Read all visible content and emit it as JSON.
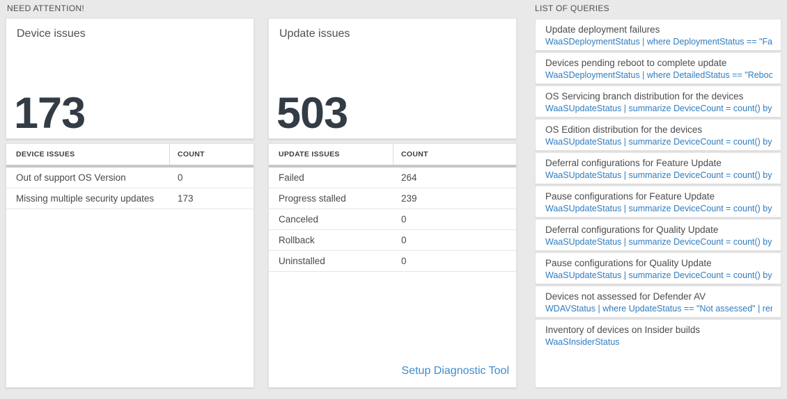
{
  "need_attention": {
    "label": "NEED ATTENTION!",
    "cards": [
      {
        "title": "Device issues",
        "count": "173",
        "table": {
          "headers": [
            "DEVICE ISSUES",
            "COUNT"
          ],
          "rows": [
            {
              "name": "Out of support OS Version",
              "count": "0"
            },
            {
              "name": "Missing multiple security updates",
              "count": "173"
            }
          ]
        }
      },
      {
        "title": "Update issues",
        "count": "503",
        "table": {
          "headers": [
            "UPDATE ISSUES",
            "COUNT"
          ],
          "rows": [
            {
              "name": "Failed",
              "count": "264"
            },
            {
              "name": "Progress stalled",
              "count": "239"
            },
            {
              "name": "Canceled",
              "count": "0"
            },
            {
              "name": "Rollback",
              "count": "0"
            },
            {
              "name": "Uninstalled",
              "count": "0"
            }
          ]
        },
        "footer_link": "Setup Diagnostic Tool"
      }
    ]
  },
  "list_of_queries": {
    "label": "LIST OF QUERIES",
    "items": [
      {
        "title": "Update deployment failures",
        "query": "WaaSDeploymentStatus | where DeploymentStatus == \"Failed\" |..."
      },
      {
        "title": "Devices pending reboot to complete update",
        "query": "WaaSDeploymentStatus | where DetailedStatus == \"Reboot pend..."
      },
      {
        "title": "OS Servicing branch distribution for the devices",
        "query": "WaaSUpdateStatus | summarize DeviceCount = count() by OSSer..."
      },
      {
        "title": "OS Edition distribution for the devices",
        "query": "WaaSUpdateStatus | summarize DeviceCount = count() by OSEdit..."
      },
      {
        "title": "Deferral configurations for Feature Update",
        "query": "WaaSUpdateStatus | summarize DeviceCount = count() by Featur..."
      },
      {
        "title": "Pause configurations for Feature Update",
        "query": "WaaSUpdateStatus | summarize DeviceCount = count() by Featur..."
      },
      {
        "title": "Deferral configurations for Quality Update",
        "query": "WaaSUpdateStatus | summarize DeviceCount = count() by Qualit..."
      },
      {
        "title": "Pause configurations for Quality Update",
        "query": "WaaSUpdateStatus | summarize DeviceCount = count() by Qualit..."
      },
      {
        "title": "Devices not assessed for Defender AV",
        "query": "WDAVStatus | where UpdateStatus == \"Not assessed\" | render ta..."
      },
      {
        "title": "Inventory of devices on Insider builds",
        "query": "WaaSInsiderStatus"
      }
    ]
  },
  "colors": {
    "page_bg": "#e9e9e9",
    "query_blue": "#2e7cc0",
    "link_blue": "#3f8ccd",
    "number_dark": "#333b45",
    "header_bar_gray": "#c7c7c7"
  }
}
